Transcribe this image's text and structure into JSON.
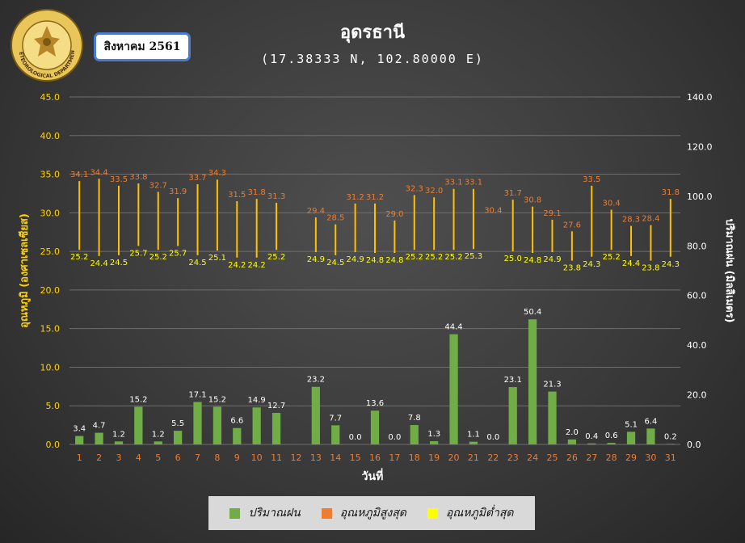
{
  "header": {
    "title": "อุดรธานี",
    "subtitle": "(17.38333 N, 102.80000 E)",
    "month": "สิงหาคม 2561",
    "logo_text": "METEOROLOGICAL DEPARTMENT"
  },
  "colors": {
    "rain": "#70ad47",
    "tmax": "#ed7d31",
    "tmin": "#ffff00",
    "range_bar": "#ffc000",
    "left_axis_text": "#ffd200",
    "right_axis_text": "#ffffff",
    "x_tick_text": "#ed7d31"
  },
  "legend": {
    "rain": "ปริมาณฝน",
    "tmax": "อุณหภูมิสูงสุด",
    "tmin": "อุณหภูมิต่ำสุด"
  },
  "chart_data": {
    "type": "bar",
    "xlabel": "วันที่",
    "ylabel_left": "อุณหภูมิ (องศาเซลเซียส)",
    "ylabel_right": "ปริมาณฝน (มิลลิเมตร)",
    "ylim_left": [
      0,
      45
    ],
    "ylim_right": [
      0,
      140
    ],
    "yticks_left": [
      "0.0",
      "5.0",
      "10.0",
      "15.0",
      "20.0",
      "25.0",
      "30.0",
      "35.0",
      "40.0",
      "45.0"
    ],
    "yticks_right": [
      "0.0",
      "20.0",
      "40.0",
      "60.0",
      "80.0",
      "100.0",
      "120.0",
      "140.0"
    ],
    "grid": "horizontal",
    "legend_position": "bottom",
    "categories": [
      "1",
      "2",
      "3",
      "4",
      "5",
      "6",
      "7",
      "8",
      "9",
      "10",
      "11",
      "12",
      "13",
      "14",
      "15",
      "16",
      "17",
      "18",
      "19",
      "20",
      "21",
      "22",
      "23",
      "24",
      "25",
      "26",
      "27",
      "28",
      "29",
      "30",
      "31"
    ],
    "series": [
      {
        "name": "ปริมาณฝน",
        "type": "bar",
        "axis": "right",
        "values": [
          3.4,
          4.7,
          1.2,
          15.2,
          1.2,
          5.5,
          17.1,
          15.2,
          6.6,
          14.9,
          12.7,
          null,
          23.2,
          7.7,
          0.0,
          13.6,
          0.0,
          7.8,
          1.3,
          44.4,
          1.1,
          0.0,
          23.1,
          50.4,
          21.3,
          2.0,
          0.4,
          0.6,
          5.1,
          6.4,
          0.2
        ]
      },
      {
        "name": "อุณหภูมิสูงสุด",
        "type": "range-high",
        "axis": "left",
        "values": [
          34.1,
          34.4,
          33.5,
          33.8,
          32.7,
          31.9,
          33.7,
          34.3,
          31.5,
          31.8,
          31.3,
          null,
          29.4,
          28.5,
          31.2,
          31.2,
          29.0,
          32.3,
          32.0,
          33.1,
          33.1,
          30.4,
          31.7,
          30.8,
          29.1,
          27.6,
          33.5,
          30.4,
          28.3,
          28.4,
          31.8
        ]
      },
      {
        "name": "อุณหภูมิต่ำสุด",
        "type": "range-low",
        "axis": "left",
        "values": [
          25.2,
          24.4,
          24.5,
          25.7,
          25.2,
          25.7,
          24.5,
          25.1,
          24.2,
          24.2,
          25.2,
          null,
          24.9,
          24.5,
          24.9,
          24.8,
          24.8,
          25.2,
          25.2,
          25.2,
          25.3,
          null,
          25.0,
          24.8,
          24.9,
          23.8,
          24.3,
          25.2,
          24.4,
          23.8,
          24.3
        ]
      }
    ]
  }
}
